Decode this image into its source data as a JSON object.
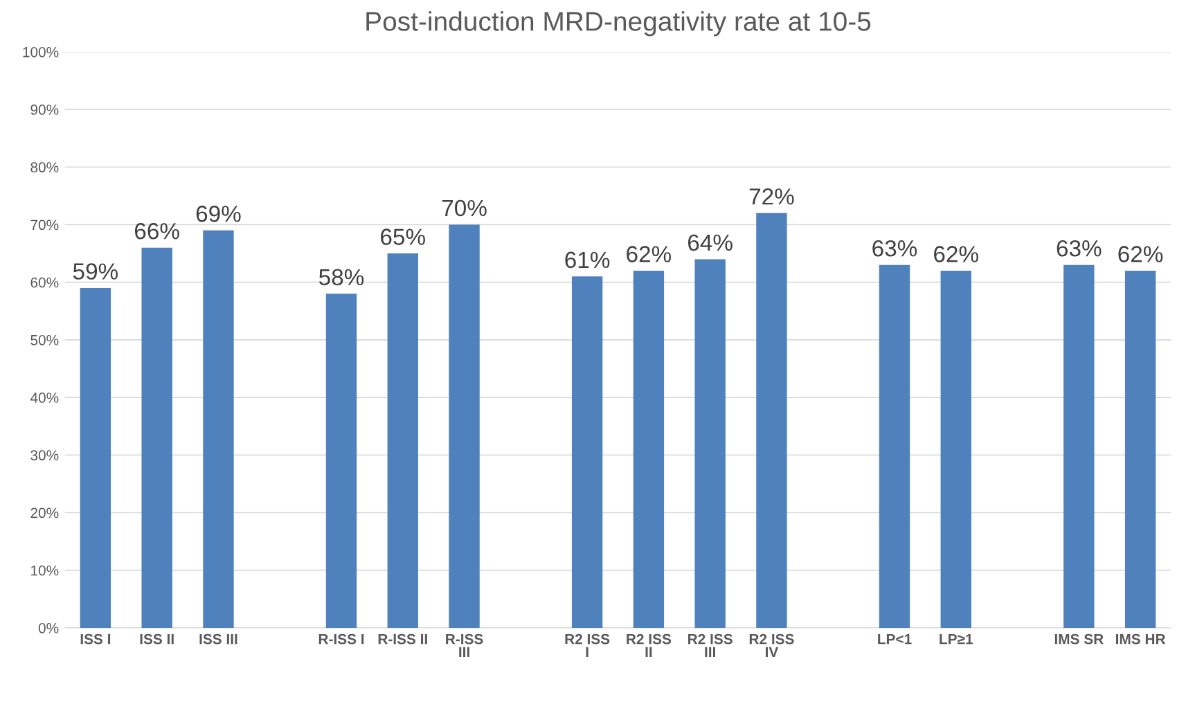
{
  "chart_data": {
    "type": "bar",
    "title": "Post-induction MRD-negativity rate at 10-5",
    "categories": [
      "ISS I",
      "ISS II",
      "ISS III",
      null,
      "R-ISS I",
      "R-ISS II",
      "R-ISS\nIII",
      null,
      "R2 ISS\nI",
      "R2 ISS\nII",
      "R2 ISS\nIII",
      "R2 ISS\nIV",
      null,
      "LP<1",
      "LP≥1",
      null,
      "IMS SR",
      "IMS HR"
    ],
    "values": [
      59,
      66,
      69,
      null,
      58,
      65,
      70,
      null,
      61,
      62,
      64,
      72,
      null,
      63,
      62,
      null,
      63,
      62
    ],
    "value_labels": [
      "59%",
      "66%",
      "69%",
      null,
      "58%",
      "65%",
      "70%",
      null,
      "61%",
      "62%",
      "64%",
      "72%",
      null,
      "63%",
      "62%",
      null,
      "63%",
      "62%"
    ],
    "color": "#4f81bd",
    "ylim": [
      0,
      100
    ],
    "yticks": [
      {
        "value": 0,
        "label": "0%"
      },
      {
        "value": 10,
        "label": "10%"
      },
      {
        "value": 20,
        "label": "20%"
      },
      {
        "value": 30,
        "label": "30%"
      },
      {
        "value": 40,
        "label": "40%"
      },
      {
        "value": 50,
        "label": "50%"
      },
      {
        "value": 60,
        "label": "60%"
      },
      {
        "value": 70,
        "label": "70%"
      },
      {
        "value": 80,
        "label": "80%"
      },
      {
        "value": 90,
        "label": "90%"
      },
      {
        "value": 100,
        "label": "100%"
      }
    ],
    "grid": "y",
    "legend": false
  }
}
